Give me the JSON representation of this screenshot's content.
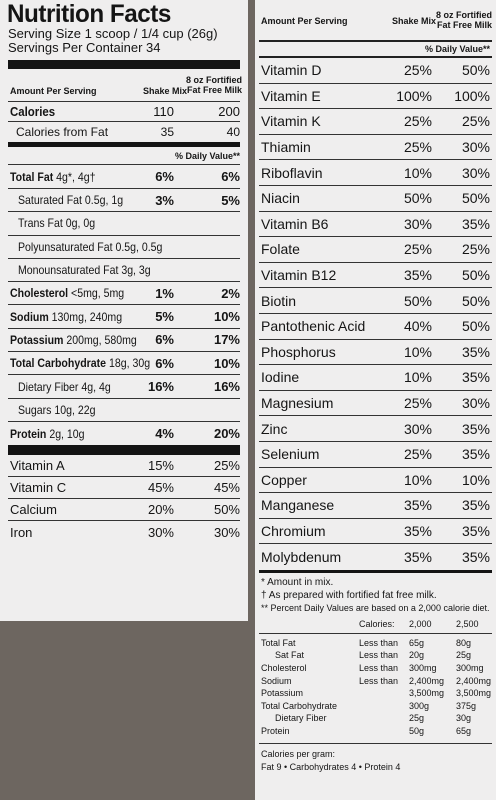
{
  "title": "Nutrition Facts",
  "serving_size": "Serving Size 1 scoop / 1/4 cup (26g)",
  "servings_per_container": "Servings Per Container 34",
  "header": {
    "amount_per_serving": "Amount Per Serving",
    "col1": "Shake Mix",
    "col2_line1": "8 oz Fortified",
    "col2_line2": "Fat Free Milk"
  },
  "calories": {
    "label": "Calories",
    "mix": "110",
    "milk": "200"
  },
  "calories_from_fat": {
    "label": "Calories from Fat",
    "mix": "35",
    "milk": "40"
  },
  "daily_value_header": "% Daily Value**",
  "nutrients": [
    {
      "label": "Total Fat",
      "amount": " 4g*, 4g†",
      "mix": "6%",
      "milk": "6%"
    },
    {
      "label": "Saturated Fat 0.5g, 1g",
      "mix": "3%",
      "milk": "5%"
    },
    {
      "label": "Trans Fat 0g, 0g"
    },
    {
      "label": "Polyunsaturated Fat 0.5g, 0.5g"
    },
    {
      "label": "Monounsaturated Fat 3g, 3g"
    },
    {
      "label": "Cholesterol",
      "amount": " <5mg, 5mg",
      "mix": "1%",
      "milk": "2%"
    },
    {
      "label": "Sodium",
      "amount": " 130mg, 240mg",
      "mix": "5%",
      "milk": "10%"
    },
    {
      "label": "Potassium",
      "amount": " 200mg, 580mg",
      "mix": "6%",
      "milk": "17%"
    },
    {
      "label": "Total Carbohydrate",
      "amount": " 18g, 30g",
      "mix": "6%",
      "milk": "10%"
    },
    {
      "label": "Dietary Fiber 4g, 4g",
      "mix": "16%",
      "milk": "16%"
    },
    {
      "label": "Sugars 10g, 22g"
    },
    {
      "label": "Protein",
      "amount": " 2g, 10g",
      "mix": "4%",
      "milk": "20%"
    }
  ],
  "vitamins_left": [
    {
      "label": "Vitamin A",
      "mix": "15%",
      "milk": "25%"
    },
    {
      "label": "Vitamin C",
      "mix": "45%",
      "milk": "45%"
    },
    {
      "label": "Calcium",
      "mix": "20%",
      "milk": "50%"
    },
    {
      "label": "Iron",
      "mix": "30%",
      "milk": "30%"
    }
  ],
  "vitamins_right": [
    {
      "label": "Vitamin D",
      "mix": "25%",
      "milk": "50%"
    },
    {
      "label": "Vitamin E",
      "mix": "100%",
      "milk": "100%"
    },
    {
      "label": "Vitamin K",
      "mix": "25%",
      "milk": "25%"
    },
    {
      "label": "Thiamin",
      "mix": "25%",
      "milk": "30%"
    },
    {
      "label": "Riboflavin",
      "mix": "10%",
      "milk": "30%"
    },
    {
      "label": "Niacin",
      "mix": "50%",
      "milk": "50%"
    },
    {
      "label": "Vitamin B6",
      "mix": "30%",
      "milk": "35%"
    },
    {
      "label": "Folate",
      "mix": "25%",
      "milk": "25%"
    },
    {
      "label": "Vitamin B12",
      "mix": "35%",
      "milk": "50%"
    },
    {
      "label": "Biotin",
      "mix": "50%",
      "milk": "50%"
    },
    {
      "label": "Pantothenic Acid",
      "mix": "40%",
      "milk": "50%"
    },
    {
      "label": "Phosphorus",
      "mix": "10%",
      "milk": "35%"
    },
    {
      "label": "Iodine",
      "mix": "10%",
      "milk": "35%"
    },
    {
      "label": "Magnesium",
      "mix": "25%",
      "milk": "30%"
    },
    {
      "label": "Zinc",
      "mix": "30%",
      "milk": "35%"
    },
    {
      "label": "Selenium",
      "mix": "25%",
      "milk": "35%"
    },
    {
      "label": "Copper",
      "mix": "10%",
      "milk": "10%"
    },
    {
      "label": "Manganese",
      "mix": "35%",
      "milk": "35%"
    },
    {
      "label": "Chromium",
      "mix": "35%",
      "milk": "35%"
    },
    {
      "label": "Molybdenum",
      "mix": "35%",
      "milk": "35%"
    }
  ],
  "footnotes": [
    "* Amount in mix.",
    "† As prepared with fortified fat free milk.",
    "** Percent Daily Values are based on a 2,000 calorie diet."
  ],
  "dv_table": {
    "calories_label": "Calories:",
    "levels": [
      "2,000",
      "2,500"
    ],
    "rows": [
      {
        "name": "Total Fat",
        "limit": "Less than",
        "a": "65g",
        "b": "80g"
      },
      {
        "name": "Sat Fat",
        "limit": "Less than",
        "a": "20g",
        "b": "25g",
        "indent": true
      },
      {
        "name": "Cholesterol",
        "limit": "Less than",
        "a": "300mg",
        "b": "300mg"
      },
      {
        "name": "Sodium",
        "limit": "Less than",
        "a": "2,400mg",
        "b": "2,400mg"
      },
      {
        "name": "Potassium",
        "limit": "",
        "a": "3,500mg",
        "b": "3,500mg"
      },
      {
        "name": "Total Carbohydrate",
        "limit": "",
        "a": "300g",
        "b": "375g"
      },
      {
        "name": "Dietary Fiber",
        "limit": "",
        "a": "25g",
        "b": "30g",
        "indent": true
      },
      {
        "name": "Protein",
        "limit": "",
        "a": "50g",
        "b": "65g"
      }
    ]
  },
  "calories_per_gram": {
    "label": "Calories per gram:",
    "line": "Fat 9  •  Carbohydrates 4  •  Protein 4"
  }
}
